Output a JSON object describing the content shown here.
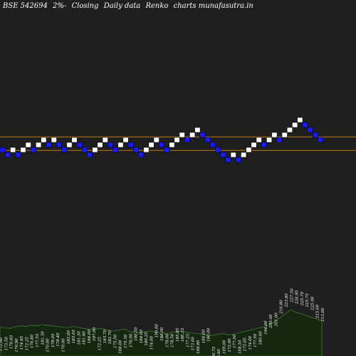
{
  "header": {
    "symbol": "BSE 542694",
    "box_size": "2%-",
    "price_type": "Closing",
    "frequency": "Daily data",
    "chart_kind": "Renko",
    "source": "charts munafasutra.in"
  },
  "colors": {
    "background": "#000000",
    "plot_background": "#1f1f1f",
    "up_brick": "#ffffff",
    "down_brick": "#1a1aff",
    "resistance_line": "#c87d0a",
    "volume_fill": "#14280f",
    "volume_edge": "#3e7a2a",
    "label_text": "#ffffff"
  },
  "chart_data": {
    "type": "renko",
    "x": [
      1,
      2,
      3,
      4,
      5,
      6,
      7,
      8,
      9,
      10,
      11,
      12,
      13,
      14,
      15,
      16,
      17,
      18,
      19,
      20,
      21,
      22,
      23,
      24,
      25,
      26,
      27,
      28,
      29,
      30,
      31,
      32,
      33,
      34,
      35,
      36,
      37,
      38,
      39,
      40,
      41,
      42,
      43,
      44,
      45,
      46,
      47,
      48,
      49,
      50,
      51,
      52,
      53,
      54,
      55,
      56,
      57,
      58,
      59,
      60,
      61,
      62,
      63
    ],
    "bricks": [
      "down",
      "down",
      "up",
      "down",
      "up",
      "up",
      "down",
      "up",
      "up",
      "down",
      "up",
      "down",
      "down",
      "up",
      "up",
      "down",
      "down",
      "down",
      "up",
      "up",
      "up",
      "down",
      "down",
      "up",
      "up",
      "down",
      "down",
      "down",
      "up",
      "up",
      "up",
      "down",
      "down",
      "up",
      "up",
      "up",
      "down",
      "up",
      "up",
      "down",
      "down",
      "down",
      "down",
      "down",
      "down",
      "up",
      "down",
      "up",
      "up",
      "up",
      "up",
      "down",
      "up",
      "up",
      "down",
      "up",
      "up",
      "up",
      "up",
      "down",
      "down",
      "down",
      "down"
    ],
    "brick_levels": [
      176,
      175,
      176,
      175,
      176,
      177,
      176,
      177,
      178,
      177,
      178,
      177,
      176,
      177,
      178,
      177,
      176,
      175,
      176,
      177,
      178,
      177,
      176,
      177,
      178,
      177,
      176,
      175,
      176,
      177,
      178,
      177,
      176,
      177,
      178,
      179,
      178,
      179,
      180,
      179,
      178,
      177,
      176,
      175,
      174,
      175,
      174,
      175,
      176,
      177,
      178,
      177,
      178,
      179,
      178,
      179,
      180,
      181,
      182,
      181,
      180,
      179,
      178
    ],
    "resistance_levels": [
      178.6,
      175.9
    ],
    "volume": [
      0.45,
      0.44,
      0.43,
      0.46,
      0.47,
      0.46,
      0.48,
      0.47,
      0.49,
      0.48,
      0.47,
      0.46,
      0.45,
      0.44,
      0.46,
      0.45,
      0.43,
      0.42,
      0.41,
      0.43,
      0.42,
      0.4,
      0.39,
      0.41,
      0.42,
      0.38,
      0.37,
      0.36,
      0.38,
      0.39,
      0.37,
      0.36,
      0.35,
      0.37,
      0.38,
      0.39,
      0.37,
      0.36,
      0.35,
      0.34,
      0.33,
      0.32,
      0.34,
      0.35,
      0.33,
      0.34,
      0.36,
      0.38,
      0.4,
      0.42,
      0.44,
      0.46,
      0.5,
      0.54,
      0.6,
      0.66,
      0.72,
      0.68,
      0.66,
      0.63,
      0.6,
      0.58,
      0.55
    ],
    "volume_labels": [
      "172.00",
      "173.50",
      "176.60",
      "170.90",
      "174.45",
      "172.25",
      "176.80",
      "177.55",
      "181.30",
      "170.00",
      "178.05",
      "178.40",
      "170.00",
      "182.00",
      "183.05",
      "181.30",
      "181.00",
      "184.00",
      "187.00",
      "172.25",
      "183.70",
      "182.70",
      "175.50",
      "168.00",
      "175.30",
      "178.00",
      "186.50",
      "184.00",
      "180.25",
      "174.00",
      "190.00",
      "186.00",
      "178.00",
      "178.50",
      "185.85",
      "186.15",
      "177.25",
      "173.00",
      "168.80",
      "184.00",
      "186.00",
      "160.75",
      "156.85",
      "169.00",
      "172.00",
      "177.50",
      "168.50",
      "172.05",
      "174.00",
      "177.50",
      "180.00",
      "194.00",
      "200.00",
      "201.00",
      "216.80",
      "223.80",
      "227.50",
      "226.95",
      "225.70",
      "225.75",
      "225.00",
      "215.00",
      "213.00"
    ],
    "volume_label_t": [
      0.21,
      0.22,
      0.24,
      0.2,
      0.23,
      0.22,
      0.25,
      0.26,
      0.29,
      0.2,
      0.26,
      0.27,
      0.2,
      0.3,
      0.31,
      0.29,
      0.29,
      0.31,
      0.34,
      0.22,
      0.31,
      0.3,
      0.25,
      0.18,
      0.25,
      0.26,
      0.34,
      0.31,
      0.28,
      0.23,
      0.38,
      0.34,
      0.26,
      0.26,
      0.33,
      0.33,
      0.26,
      0.22,
      0.18,
      0.31,
      0.33,
      0.1,
      0.07,
      0.18,
      0.2,
      0.25,
      0.18,
      0.21,
      0.23,
      0.26,
      0.29,
      0.42,
      0.5,
      0.52,
      0.68,
      0.76,
      0.82,
      0.8,
      0.78,
      0.76,
      0.72,
      0.62,
      0.58
    ]
  }
}
